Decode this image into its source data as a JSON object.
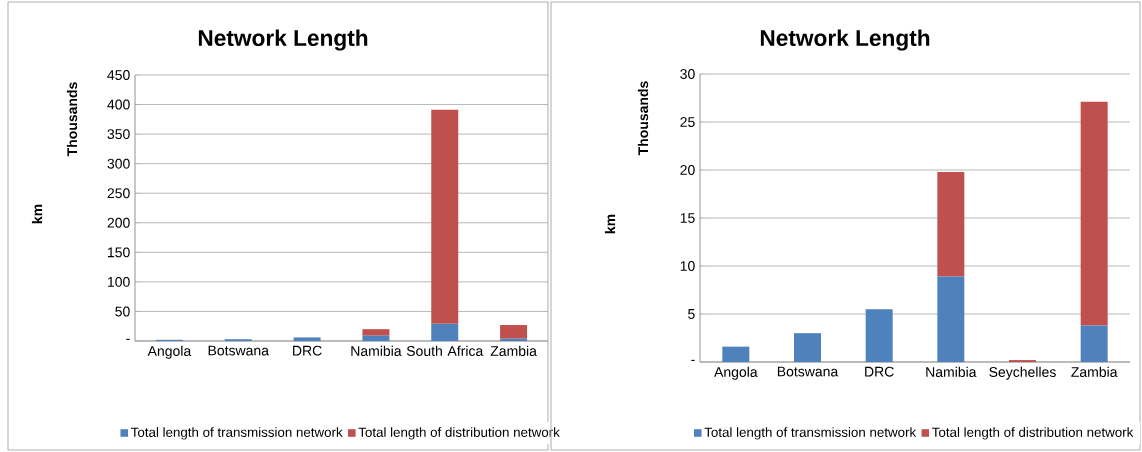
{
  "chart_data": [
    {
      "type": "bar",
      "title": "Network Length",
      "ylabel": "km",
      "annotations": [
        "Thousands"
      ],
      "stacked": true,
      "categories": [
        "Angola",
        "Botswana",
        "DRC",
        "Namibia",
        "South Africa",
        "Zambia"
      ],
      "series": [
        {
          "name": "Total length of transmission network",
          "color": "#4f81bd",
          "values": [
            2,
            3,
            6,
            9,
            29,
            4
          ]
        },
        {
          "name": "Total length of distribution network",
          "color": "#c0504d",
          "values": [
            0,
            0,
            0,
            11,
            362,
            23
          ]
        }
      ],
      "ylim": [
        0,
        450
      ],
      "yticks": [
        {
          "value": 0,
          "label": "-"
        },
        50,
        100,
        150,
        200,
        250,
        300,
        350,
        400,
        450
      ],
      "grid": "y",
      "legend": "bottom"
    },
    {
      "type": "bar",
      "title": "Network Length",
      "ylabel": "km",
      "annotations": [
        "Thousands"
      ],
      "stacked": true,
      "categories": [
        "Angola",
        "Botswana",
        "DRC",
        "Namibia",
        "Seychelles",
        "Zambia"
      ],
      "series": [
        {
          "name": "Total length of transmission network",
          "color": "#4f81bd",
          "values": [
            1.6,
            3.0,
            5.5,
            8.9,
            0,
            3.8
          ]
        },
        {
          "name": "Total length of distribution network",
          "color": "#c0504d",
          "values": [
            0,
            0,
            0,
            10.9,
            0.2,
            23.3
          ]
        }
      ],
      "ylim": [
        0,
        30
      ],
      "yticks": [
        {
          "value": 0,
          "label": "-"
        },
        5,
        10,
        15,
        20,
        25,
        30
      ],
      "grid": "y",
      "legend": "bottom"
    }
  ]
}
